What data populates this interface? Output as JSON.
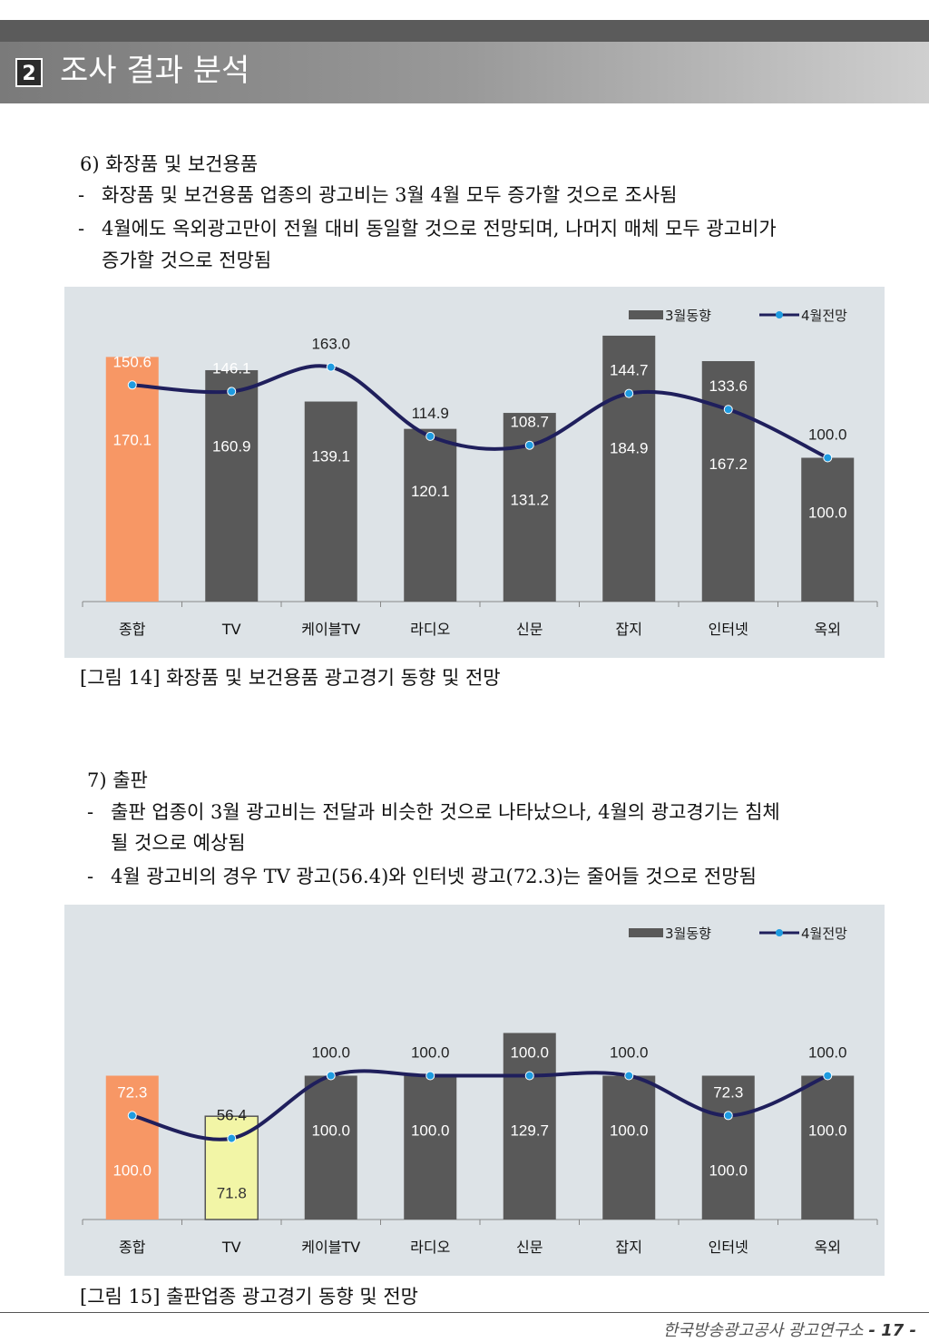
{
  "section": {
    "number": "2",
    "title": "조사 결과 분석"
  },
  "s6": {
    "heading": "6) 화장품 및 보건용품",
    "bullets": [
      "화장품 및 보건용품 업종의 광고비는 3월 4월 모두 증가할 것으로 조사됨",
      "4월에도 옥외광고만이 전월 대비 동일할 것으로 전망되며, 나머지 매체 모두 광고비가",
      "증가할 것으로 전망됨"
    ],
    "caption": "[그림 14] 화장품 및 보건용품 광고경기 동향 및 전망"
  },
  "s7": {
    "heading": "7) 출판",
    "bullets": [
      "출판 업종이 3월 광고비는 전달과 비슷한 것으로 나타났으나, 4월의 광고경기는 침체",
      "될 것으로 예상됨",
      "4월 광고비의 경우 TV 광고(56.4)와 인터넷 광고(72.3)는 줄어들 것으로 전망됨"
    ],
    "caption": "[그림 15] 출판업종 광고경기 동향 및 전망"
  },
  "footer": {
    "org": "한국방송광고공사 광고연구소",
    "page": "- 17 -"
  },
  "colors": {
    "bar": "#595959",
    "highlight1": "#f79765",
    "highlight2": "#f2f5a6",
    "line": "#1f1f5c",
    "marker": "#1e9be0",
    "chart_bg": "#dde3e7"
  },
  "chart_data": [
    {
      "type": "bar+line",
      "categories": [
        "종합",
        "TV",
        "케이블TV",
        "라디오",
        "신문",
        "잡지",
        "인터넷",
        "옥외"
      ],
      "series": [
        {
          "name": "3월동향",
          "type": "bar",
          "values": [
            170.1,
            160.9,
            139.1,
            120.1,
            131.2,
            184.9,
            167.2,
            100.0
          ]
        },
        {
          "name": "4월전망",
          "type": "line",
          "values": [
            150.6,
            146.1,
            163.0,
            114.9,
            108.7,
            144.7,
            133.6,
            100.0
          ]
        }
      ],
      "bar_highlight": {
        "종합": "highlight1"
      },
      "ylim": [
        0,
        200
      ],
      "legend": "top-right"
    },
    {
      "type": "bar+line",
      "categories": [
        "종합",
        "TV",
        "케이블TV",
        "라디오",
        "신문",
        "잡지",
        "인터넷",
        "옥외"
      ],
      "series": [
        {
          "name": "3월동향",
          "type": "bar",
          "values": [
            100.0,
            71.8,
            100.0,
            100.0,
            129.7,
            100.0,
            100.0,
            100.0
          ]
        },
        {
          "name": "4월전망",
          "type": "line",
          "values": [
            72.3,
            56.4,
            100.0,
            100.0,
            100.0,
            100.0,
            72.3,
            100.0
          ]
        }
      ],
      "bar_highlight": {
        "종합": "highlight1",
        "TV": "highlight2"
      },
      "ylim": [
        0,
        200
      ],
      "legend": "top-right"
    }
  ]
}
